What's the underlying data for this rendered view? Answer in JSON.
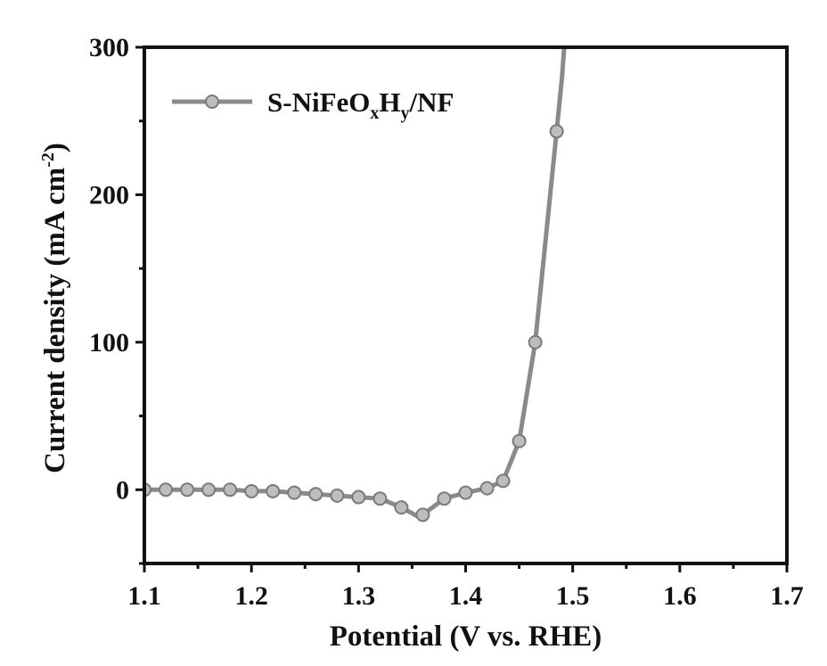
{
  "chart_data": {
    "type": "line",
    "title": "",
    "xlabel": "Potential (V vs. RHE)",
    "ylabel": {
      "text": "Current density (mA cm",
      "superscript": "-2",
      "suffix": ")"
    },
    "xlim": [
      1.1,
      1.7
    ],
    "ylim": [
      -50,
      300
    ],
    "xticks": [
      "1.1",
      "1.2",
      "1.3",
      "1.4",
      "1.5",
      "1.6",
      "1.7"
    ],
    "yticks": [
      "0",
      "100",
      "200",
      "300"
    ],
    "grid": false,
    "legend": {
      "placement": "top-left",
      "label_parts": [
        {
          "text": "S-NiFeO",
          "sub": false
        },
        {
          "text": "x",
          "sub": true
        },
        {
          "text": "H",
          "sub": false
        },
        {
          "text": "y",
          "sub": true
        },
        {
          "text": "/NF",
          "sub": false
        }
      ]
    },
    "series": [
      {
        "name": "S-NiFeOxHy/NF",
        "color": "#8a8a8a",
        "x": [
          1.1,
          1.12,
          1.14,
          1.16,
          1.18,
          1.2,
          1.22,
          1.24,
          1.26,
          1.28,
          1.3,
          1.32,
          1.34,
          1.355,
          1.36,
          1.38,
          1.4,
          1.42,
          1.435,
          1.45,
          1.465,
          1.485,
          1.49,
          1.492
        ],
        "y": [
          0,
          0,
          0,
          0,
          0,
          -1,
          -1,
          -2,
          -3,
          -4,
          -5,
          -6,
          -12,
          -18,
          -17,
          -6,
          -2,
          1,
          6,
          33,
          100,
          243,
          280,
          300
        ],
        "markers_x": [
          1.1,
          1.12,
          1.14,
          1.16,
          1.18,
          1.2,
          1.22,
          1.24,
          1.26,
          1.28,
          1.3,
          1.32,
          1.34,
          1.36,
          1.38,
          1.4,
          1.42,
          1.435,
          1.45,
          1.465,
          1.485
        ],
        "markers_y": [
          0,
          0,
          0,
          0,
          0,
          -1,
          -1,
          -2,
          -3,
          -4,
          -5,
          -6,
          -12,
          -17,
          -6,
          -2,
          1,
          6,
          33,
          100,
          243
        ]
      }
    ]
  }
}
